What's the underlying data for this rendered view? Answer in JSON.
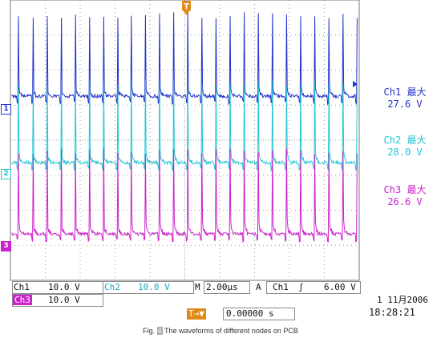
{
  "channels": [
    {
      "id": "ch1",
      "marker": "1",
      "color": "#2233cc",
      "meas_name": "Ch1 最大",
      "meas_value": "27.6 V"
    },
    {
      "id": "ch2",
      "marker": "2",
      "color": "#22c5d4",
      "meas_name": "Ch2 最大",
      "meas_value": "28.0 V"
    },
    {
      "id": "ch3",
      "marker": "3",
      "color": "#cc22cc",
      "meas_name": "Ch3 最大",
      "meas_value": "26.6 V"
    }
  ],
  "trigger_marker": "T",
  "readout": {
    "ch1_label": "Ch1",
    "ch1_scale": "10.0 V",
    "ch2_label": "Ch2",
    "ch2_scale": "10.0 V",
    "time_label": "M",
    "time_scale": "2.00μs",
    "trig_label": "A",
    "trig_source": "Ch1",
    "trig_slope": "ʃ",
    "trig_level": "6.00 V",
    "ch3_label": "Ch3",
    "ch3_scale": "10.0 V",
    "trig_pos_icon": "T→▼",
    "trig_pos": "0.00000 s",
    "date": "1 11月2006",
    "time": "18:28:21"
  },
  "caption": {
    "prefix": "Fig. ",
    "number": "4",
    "text": " The waveforms of different nodes on PCB"
  }
}
